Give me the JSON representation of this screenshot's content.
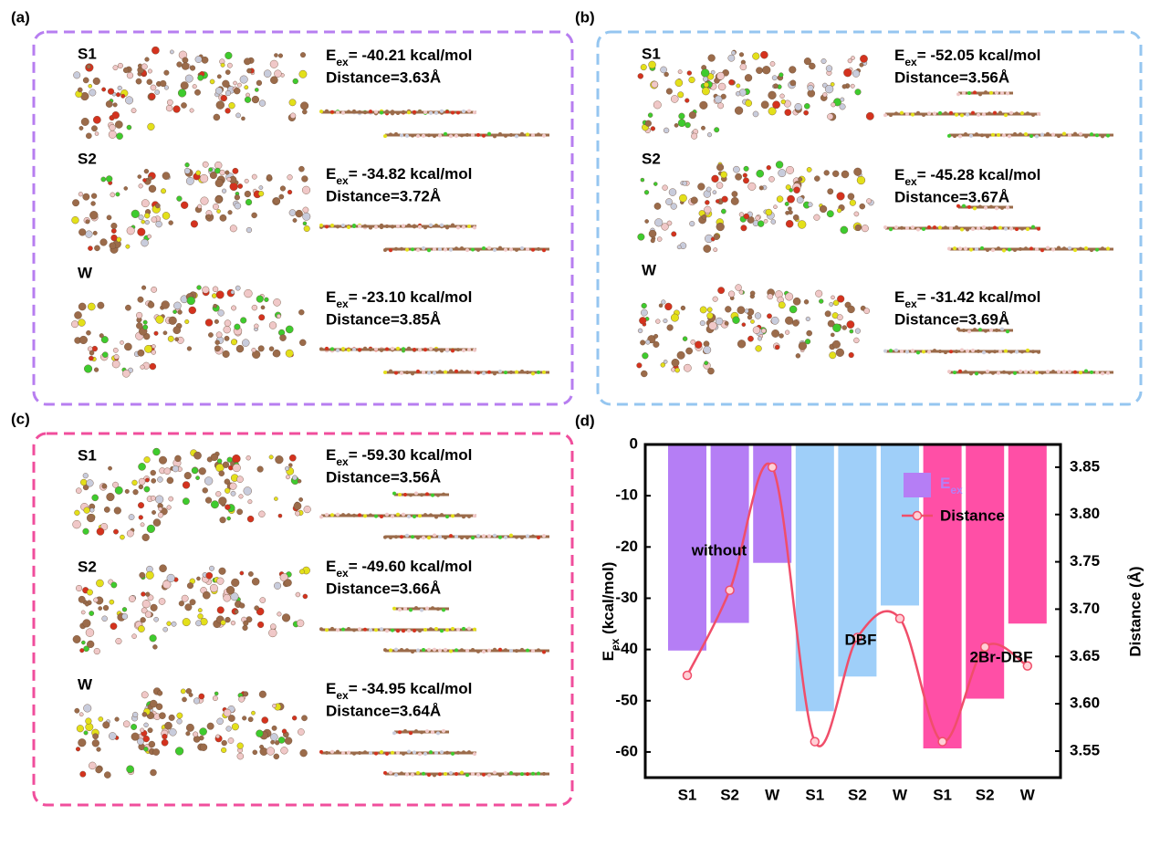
{
  "energy_symbol": "E",
  "energy_subscript": "ex",
  "panels": [
    {
      "label": "(a)",
      "rows": [
        {
          "name": "S1",
          "energy": "= -40.21 kcal/mol",
          "distance": "Distance=3.63Å"
        },
        {
          "name": "S2",
          "energy": "= -34.82 kcal/mol",
          "distance": "Distance=3.72Å"
        },
        {
          "name": "W",
          "energy": "= -23.10 kcal/mol",
          "distance": "Distance=3.85Å"
        }
      ]
    },
    {
      "label": "(b)",
      "rows": [
        {
          "name": "S1",
          "energy": "= -52.05 kcal/mol",
          "distance": "Distance=3.56Å"
        },
        {
          "name": "S2",
          "energy": "= -45.28 kcal/mol",
          "distance": "Distance=3.67Å"
        },
        {
          "name": "W",
          "energy": "= -31.42 kcal/mol",
          "distance": "Distance=3.69Å"
        }
      ]
    },
    {
      "label": "(c)",
      "rows": [
        {
          "name": "S1",
          "energy": "= -59.30 kcal/mol",
          "distance": "Distance=3.56Å"
        },
        {
          "name": "S2",
          "energy": "= -49.60 kcal/mol",
          "distance": "Distance=3.66Å"
        },
        {
          "name": "W",
          "energy": "= -34.95 kcal/mol",
          "distance": "Distance=3.64Å"
        }
      ]
    }
  ],
  "chart_label": "(d)",
  "chart_data": {
    "type": "bar",
    "categories": [
      "S1",
      "S2",
      "W",
      "S1",
      "S2",
      "W",
      "S1",
      "S2",
      "W"
    ],
    "ylabel_symbol": "E",
    "ylabel_subscript": "ex",
    "ylabel_unit": " (kcal/mol)",
    "y2label": "Distance (Å)",
    "ylim": [
      -65,
      0
    ],
    "yticks": [
      0,
      -10,
      -20,
      -30,
      -40,
      -50,
      -60
    ],
    "y2lim": [
      3.522,
      3.874
    ],
    "y2ticks": [
      3.55,
      {
        "value": 3.6,
        "label": "3.60"
      },
      3.65,
      {
        "value": 3.7,
        "label": "3.70"
      },
      3.75,
      {
        "value": 3.8,
        "label": "3.80"
      },
      3.85
    ],
    "series": [
      {
        "name": "E",
        "name_subscript": "ex",
        "type": "bar",
        "colors": [
          "#b57ef5",
          "#b57ef5",
          "#b57ef5",
          "#9fcff9",
          "#9fcff9",
          "#9fcff9",
          "#ff4fa6",
          "#ff4fa6",
          "#ff4fa6"
        ],
        "color": "#b57ef5",
        "values": [
          -40.21,
          -34.82,
          -23.1,
          -52.05,
          -45.28,
          -31.42,
          -59.3,
          -49.6,
          -34.95
        ]
      },
      {
        "name": "Distance",
        "type": "line",
        "axis": "y2",
        "color": "#f04e6a",
        "values": [
          3.63,
          3.72,
          3.85,
          3.56,
          3.67,
          3.69,
          3.56,
          3.66,
          3.64
        ]
      }
    ],
    "annotations": [
      "without",
      "DBF",
      "2Br-DBF"
    ]
  }
}
